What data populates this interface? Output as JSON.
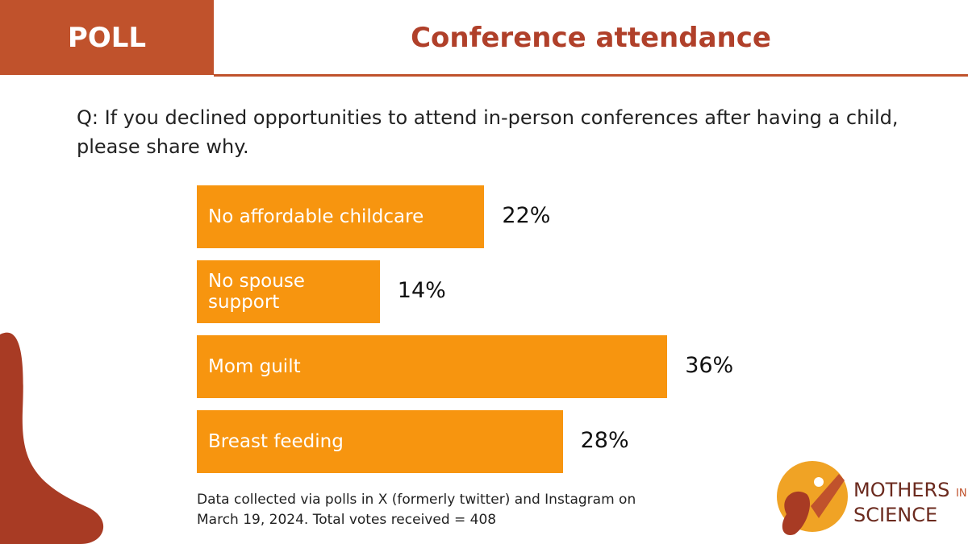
{
  "header": {
    "label": "POLL"
  },
  "chart_data": {
    "type": "bar",
    "orientation": "horizontal",
    "title": "Conference attendance",
    "subtitle": "Q: If you declined opportunities to attend in-person conferences after having a child, please share why.",
    "categories": [
      "No affordable childcare",
      "No spouse support",
      "Mom guilt",
      "Breast feeding"
    ],
    "values": [
      22,
      14,
      36,
      28
    ],
    "value_labels": [
      "22%",
      "14%",
      "36%",
      "28%"
    ],
    "color": "#f7950f",
    "note": "Data collected via polls in X (formerly twitter) and Instagram on March 19, 2024. Total votes received  = 408"
  },
  "logo": {
    "line1": "MOTHERS",
    "small": "IN",
    "line2": "SCIENCE"
  }
}
